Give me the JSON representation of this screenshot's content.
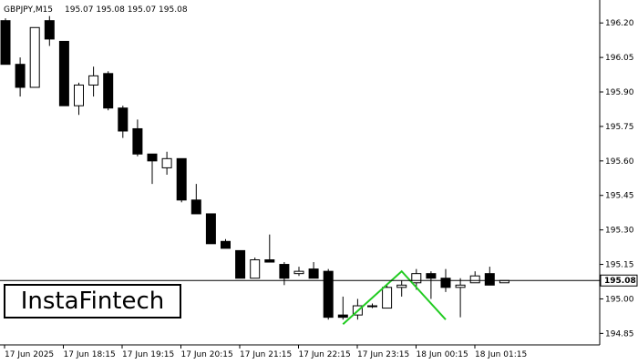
{
  "header": {
    "symbol": "GBPJPY,M15",
    "ohlc": "195.07 195.08 195.07 195.08"
  },
  "logo": {
    "text": "InstaFintech"
  },
  "colors": {
    "bull_fill": "#ffffff",
    "bear_fill": "#000000",
    "candle_outline": "#000000",
    "pattern_line": "#22cc22",
    "price_line": "#000000"
  },
  "chart_data": {
    "type": "candlestick",
    "title": "GBPJPY,M15",
    "ylim": [
      194.8,
      196.28
    ],
    "y_ticks": [
      "196.20",
      "196.05",
      "195.90",
      "195.75",
      "195.60",
      "195.45",
      "195.30",
      "195.15",
      "195.00",
      "194.85"
    ],
    "x_ticks": [
      "17 Jun 2025",
      "17 Jun 18:15",
      "17 Jun 19:15",
      "17 Jun 20:15",
      "17 Jun 21:15",
      "17 Jun 22:15",
      "17 Jun 23:15",
      "18 Jun 00:15",
      "18 Jun 01:15"
    ],
    "current_price": {
      "value": 195.08,
      "label": "195.08"
    },
    "candles": [
      {
        "o": 196.21,
        "h": 196.22,
        "l": 196.02,
        "c": 196.02
      },
      {
        "o": 196.02,
        "h": 196.05,
        "l": 195.88,
        "c": 195.92
      },
      {
        "o": 195.92,
        "h": 196.18,
        "l": 195.92,
        "c": 196.18
      },
      {
        "o": 196.21,
        "h": 196.23,
        "l": 196.1,
        "c": 196.13
      },
      {
        "o": 196.12,
        "h": 196.12,
        "l": 195.84,
        "c": 195.84
      },
      {
        "o": 195.84,
        "h": 195.94,
        "l": 195.8,
        "c": 195.93
      },
      {
        "o": 195.93,
        "h": 196.01,
        "l": 195.88,
        "c": 195.97
      },
      {
        "o": 195.98,
        "h": 195.99,
        "l": 195.82,
        "c": 195.83
      },
      {
        "o": 195.83,
        "h": 195.84,
        "l": 195.7,
        "c": 195.73
      },
      {
        "o": 195.74,
        "h": 195.78,
        "l": 195.62,
        "c": 195.63
      },
      {
        "o": 195.63,
        "h": 195.63,
        "l": 195.5,
        "c": 195.6
      },
      {
        "o": 195.57,
        "h": 195.64,
        "l": 195.54,
        "c": 195.61
      },
      {
        "o": 195.61,
        "h": 195.61,
        "l": 195.42,
        "c": 195.43
      },
      {
        "o": 195.43,
        "h": 195.5,
        "l": 195.37,
        "c": 195.37
      },
      {
        "o": 195.37,
        "h": 195.37,
        "l": 195.24,
        "c": 195.24
      },
      {
        "o": 195.25,
        "h": 195.26,
        "l": 195.23,
        "c": 195.22
      },
      {
        "o": 195.21,
        "h": 195.21,
        "l": 195.1,
        "c": 195.09
      },
      {
        "o": 195.09,
        "h": 195.18,
        "l": 195.1,
        "c": 195.17
      },
      {
        "o": 195.17,
        "h": 195.28,
        "l": 195.16,
        "c": 195.16
      },
      {
        "o": 195.15,
        "h": 195.16,
        "l": 195.06,
        "c": 195.09
      },
      {
        "o": 195.11,
        "h": 195.14,
        "l": 195.1,
        "c": 195.12
      },
      {
        "o": 195.13,
        "h": 195.16,
        "l": 195.09,
        "c": 195.09
      },
      {
        "o": 195.12,
        "h": 195.13,
        "l": 194.91,
        "c": 194.92
      },
      {
        "o": 194.93,
        "h": 195.01,
        "l": 194.91,
        "c": 194.92
      },
      {
        "o": 194.93,
        "h": 195.0,
        "l": 194.91,
        "c": 194.97
      },
      {
        "o": 194.97,
        "h": 194.98,
        "l": 194.96,
        "c": 194.97
      },
      {
        "o": 194.96,
        "h": 195.06,
        "l": 194.96,
        "c": 195.05
      },
      {
        "o": 195.05,
        "h": 195.08,
        "l": 195.01,
        "c": 195.06
      },
      {
        "o": 195.07,
        "h": 195.13,
        "l": 195.04,
        "c": 195.11
      },
      {
        "o": 195.11,
        "h": 195.12,
        "l": 195.0,
        "c": 195.09
      },
      {
        "o": 195.09,
        "h": 195.13,
        "l": 195.03,
        "c": 195.05
      },
      {
        "o": 195.05,
        "h": 195.09,
        "l": 194.92,
        "c": 195.06
      },
      {
        "o": 195.07,
        "h": 195.12,
        "l": 195.07,
        "c": 195.1
      },
      {
        "o": 195.11,
        "h": 195.14,
        "l": 195.06,
        "c": 195.06
      },
      {
        "o": 195.07,
        "h": 195.08,
        "l": 195.07,
        "c": 195.08
      }
    ],
    "pattern": {
      "name": "double top",
      "start_index": 23,
      "points": [
        {
          "index": 23,
          "value": 194.89
        },
        {
          "index": 27,
          "value": 195.12
        },
        {
          "index": 30,
          "value": 194.91
        }
      ]
    }
  }
}
